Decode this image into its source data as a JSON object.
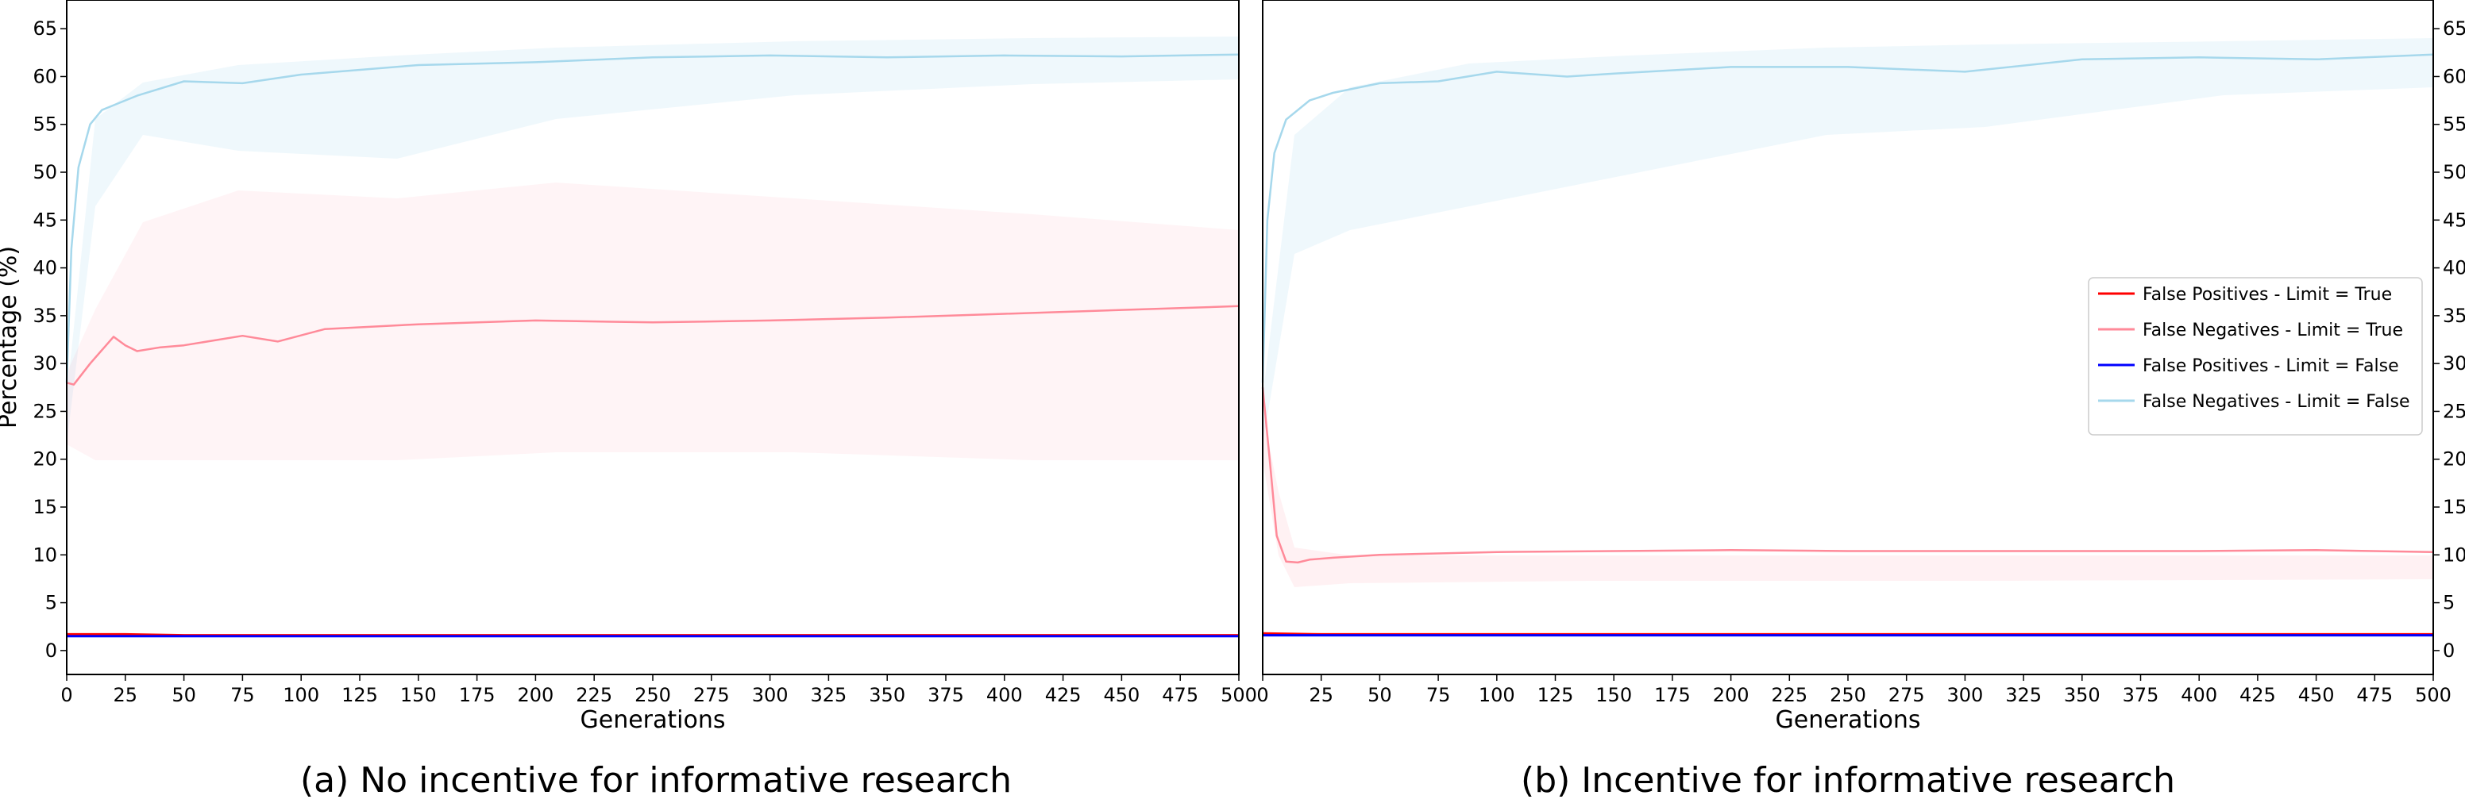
{
  "chart_data": [
    {
      "type": "line",
      "caption": "(a) No incentive for informative research",
      "xlabel": "Generations",
      "ylabel": "Percentage (%)",
      "xlim": [
        0,
        500
      ],
      "ylim": [
        -2.5,
        68
      ],
      "xticks": [
        0,
        25,
        50,
        75,
        100,
        125,
        150,
        175,
        200,
        225,
        250,
        275,
        300,
        325,
        350,
        375,
        400,
        425,
        450,
        475,
        500
      ],
      "yticks": [
        0,
        5,
        10,
        15,
        20,
        25,
        30,
        35,
        40,
        45,
        50,
        55,
        60,
        65
      ],
      "ytick_side": "left",
      "grid": false,
      "series": [
        {
          "name": "False Positives - Limit = True",
          "color": "#ff0000",
          "x": [
            0,
            25,
            50,
            100,
            150,
            200,
            250,
            300,
            350,
            400,
            450,
            500
          ],
          "y": [
            1.7,
            1.7,
            1.6,
            1.6,
            1.6,
            1.6,
            1.6,
            1.6,
            1.6,
            1.6,
            1.6,
            1.6
          ]
        },
        {
          "name": "False Negatives - Limit = True",
          "color": "#ff8a99",
          "x": [
            0,
            3,
            10,
            20,
            25,
            30,
            40,
            50,
            75,
            90,
            110,
            150,
            200,
            250,
            300,
            350,
            400,
            450,
            500
          ],
          "y": [
            28,
            27.8,
            30,
            32.8,
            31.9,
            31.3,
            31.7,
            31.9,
            32.9,
            32.3,
            33.6,
            34.1,
            34.5,
            34.3,
            34.5,
            34.8,
            35.2,
            35.6,
            36
          ]
        },
        {
          "name": "False Positives - Limit = False",
          "color": "#0000ff",
          "x": [
            0,
            25,
            50,
            100,
            150,
            200,
            250,
            300,
            350,
            400,
            450,
            500
          ],
          "y": [
            1.5,
            1.5,
            1.5,
            1.5,
            1.5,
            1.5,
            1.5,
            1.5,
            1.5,
            1.5,
            1.5,
            1.5
          ]
        },
        {
          "name": "False Negatives - Limit = False",
          "color": "#a6d8ec",
          "x": [
            0,
            2,
            5,
            10,
            15,
            20,
            30,
            50,
            75,
            100,
            150,
            200,
            250,
            300,
            350,
            400,
            450,
            500
          ],
          "y": [
            28,
            42,
            50.5,
            55,
            56.5,
            57,
            58,
            59.5,
            59.3,
            60.2,
            61.2,
            61.5,
            62,
            62.2,
            62,
            62.2,
            62.1,
            62.3
          ]
        }
      ]
    },
    {
      "type": "line",
      "caption": "(b) Incentive for informative research",
      "xlabel": "Generations",
      "ylabel": "",
      "xlim": [
        0,
        500
      ],
      "ylim": [
        -2.5,
        68
      ],
      "xticks": [
        0,
        25,
        50,
        75,
        100,
        125,
        150,
        175,
        200,
        225,
        250,
        275,
        300,
        325,
        350,
        375,
        400,
        425,
        450,
        475,
        500
      ],
      "yticks": [
        0,
        5,
        10,
        15,
        20,
        25,
        30,
        35,
        40,
        45,
        50,
        55,
        60,
        65
      ],
      "ytick_side": "right",
      "grid": false,
      "legend_position": "center-right",
      "legend": [
        {
          "label": "False Positives - Limit = True",
          "color": "#ff0000"
        },
        {
          "label": "False Negatives - Limit = True",
          "color": "#ff8a99"
        },
        {
          "label": "False Positives - Limit = False",
          "color": "#0000ff"
        },
        {
          "label": "False Negatives - Limit = False",
          "color": "#a6d8ec"
        }
      ],
      "series": [
        {
          "name": "False Positives - Limit = True",
          "color": "#ff0000",
          "x": [
            0,
            25,
            50,
            100,
            150,
            200,
            250,
            300,
            350,
            400,
            450,
            500
          ],
          "y": [
            1.8,
            1.7,
            1.7,
            1.7,
            1.7,
            1.7,
            1.7,
            1.7,
            1.7,
            1.7,
            1.7,
            1.7
          ]
        },
        {
          "name": "False Negatives - Limit = True",
          "color": "#ff8a99",
          "x": [
            0,
            3,
            6,
            10,
            15,
            20,
            30,
            50,
            100,
            150,
            200,
            250,
            300,
            350,
            400,
            450,
            500
          ],
          "y": [
            27.5,
            20,
            12,
            9.3,
            9.2,
            9.5,
            9.7,
            10,
            10.3,
            10.4,
            10.5,
            10.4,
            10.4,
            10.4,
            10.4,
            10.5,
            10.3
          ]
        },
        {
          "name": "False Positives - Limit = False",
          "color": "#0000ff",
          "x": [
            0,
            25,
            50,
            100,
            150,
            200,
            250,
            300,
            350,
            400,
            450,
            500
          ],
          "y": [
            1.6,
            1.6,
            1.6,
            1.6,
            1.6,
            1.6,
            1.6,
            1.6,
            1.6,
            1.6,
            1.6,
            1.6
          ]
        },
        {
          "name": "False Negatives - Limit = False",
          "color": "#a6d8ec",
          "x": [
            0,
            2,
            5,
            10,
            20,
            30,
            50,
            75,
            100,
            130,
            150,
            200,
            250,
            300,
            350,
            400,
            450,
            500
          ],
          "y": [
            28,
            45,
            52,
            55.5,
            57.5,
            58.3,
            59.3,
            59.5,
            60.5,
            60,
            60.3,
            61,
            61,
            60.5,
            61.8,
            62,
            61.8,
            62.3
          ]
        }
      ]
    }
  ]
}
